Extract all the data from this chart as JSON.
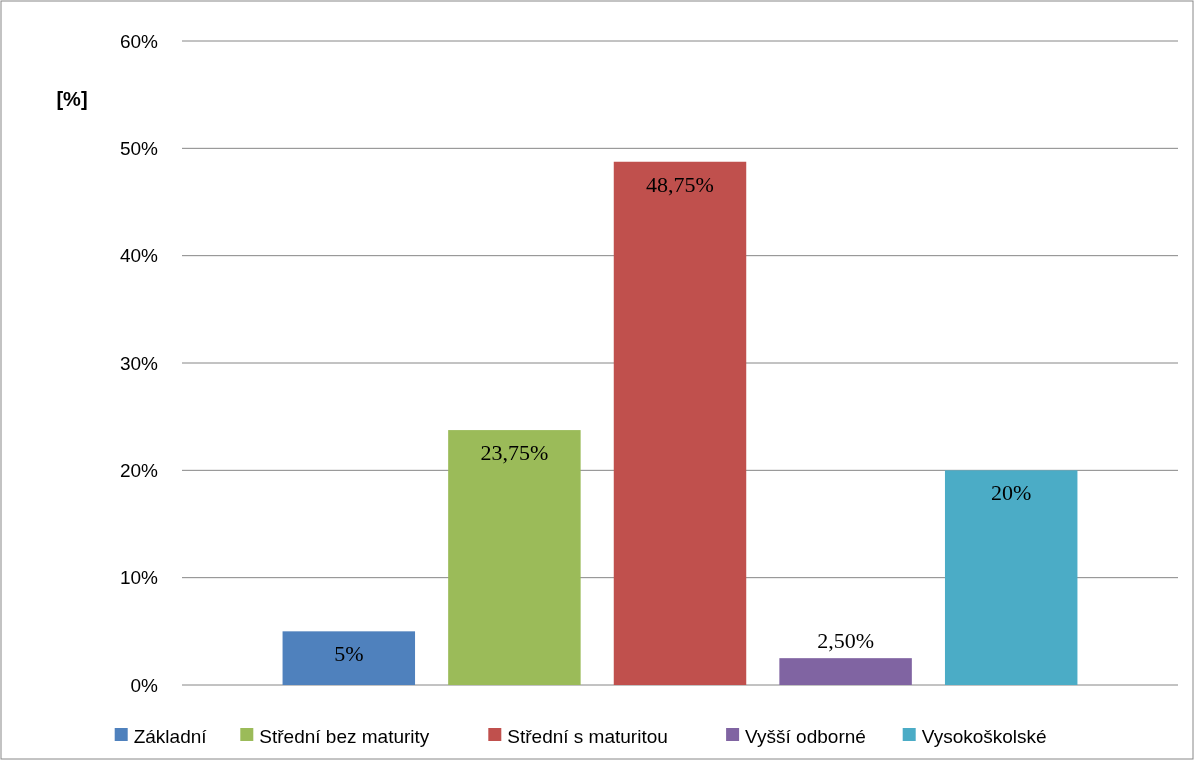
{
  "chart_data": {
    "type": "bar",
    "ylabel": "[%]",
    "categories": [
      null
    ],
    "series": [
      {
        "name": "Základní",
        "color": "#4f81bd",
        "values": [
          5
        ],
        "value_labels": [
          "5%"
        ]
      },
      {
        "name": "Střední bez maturity",
        "color": "#9bbb59",
        "values": [
          23.75
        ],
        "value_labels": [
          "23,75%"
        ]
      },
      {
        "name": "Střední s maturitou",
        "color": "#c0504d",
        "values": [
          48.75
        ],
        "value_labels": [
          "48,75%"
        ]
      },
      {
        "name": "Vyšší odborné",
        "color": "#8064a2",
        "values": [
          2.5
        ],
        "value_labels": [
          "2,50%"
        ]
      },
      {
        "name": "Vysokoškolské",
        "color": "#4bacc6",
        "values": [
          20
        ],
        "value_labels": [
          "20%"
        ]
      }
    ],
    "ylim": [
      0,
      60
    ],
    "yticks": [
      {
        "value": 0,
        "label": "0%"
      },
      {
        "value": 10,
        "label": "10%"
      },
      {
        "value": 20,
        "label": "20%"
      },
      {
        "value": 30,
        "label": "30%"
      },
      {
        "value": 40,
        "label": "40%"
      },
      {
        "value": 50,
        "label": "50%"
      },
      {
        "value": 60,
        "label": "60%"
      }
    ],
    "grid": "y",
    "legend": "bottom",
    "tick_labels": "y"
  }
}
